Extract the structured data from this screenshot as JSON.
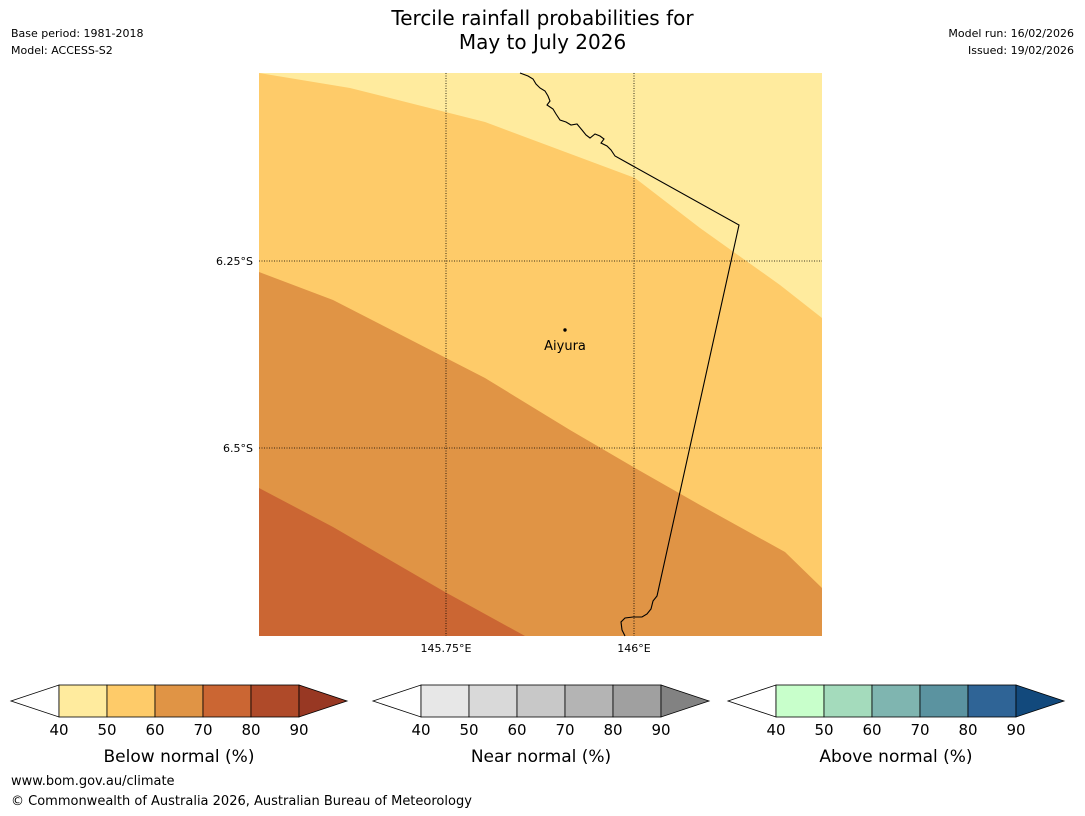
{
  "header": {
    "title_line1": "Tercile rainfall probabilities for",
    "title_line2": "May to July 2026",
    "base_period": "Base period: 1981-2018",
    "model": "Model: ACCESS-S2",
    "model_run": "Model run: 16/02/2026",
    "issued": "Issued: 19/02/2026"
  },
  "map": {
    "place": {
      "name": "Aiyura"
    },
    "lat_labels": [
      "6.25°S",
      "6.5°S"
    ],
    "lon_labels": [
      "145.75°E",
      "146°E"
    ],
    "zone_colors": [
      "#ffeb9e",
      "#fecb69",
      "#e09445",
      "#cb6633"
    ]
  },
  "legends": [
    {
      "title": "Below normal (%)",
      "ticks": [
        "40",
        "50",
        "60",
        "70",
        "80",
        "90"
      ],
      "colors": [
        "#ffffff",
        "#ffeb9e",
        "#fecb69",
        "#e09445",
        "#cb6633",
        "#af4a29",
        "#983823"
      ]
    },
    {
      "title": "Near normal (%)",
      "ticks": [
        "40",
        "50",
        "60",
        "70",
        "80",
        "90"
      ],
      "colors": [
        "#ffffff",
        "#e7e7e7",
        "#d9d9d9",
        "#c8c8c8",
        "#b4b4b4",
        "#a0a0a0",
        "#828282"
      ]
    },
    {
      "title": "Above normal (%)",
      "ticks": [
        "40",
        "50",
        "60",
        "70",
        "80",
        "90"
      ],
      "colors": [
        "#ffffff",
        "#c8ffcb",
        "#a4dbbc",
        "#7fb5b0",
        "#5b93a0",
        "#2f6496",
        "#12497c"
      ]
    }
  ],
  "footer": {
    "url": "www.bom.gov.au/climate",
    "copyright": "© Commonwealth of Australia 2026, Australian Bureau of Meteorology"
  }
}
